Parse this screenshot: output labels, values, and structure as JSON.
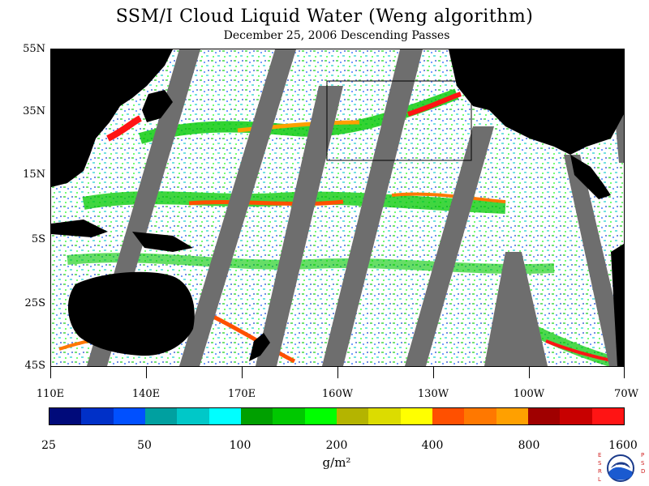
{
  "title": "SSM/I Cloud Liquid Water (Weng algorithm)",
  "subtitle": "December 25, 2006  Descending Passes",
  "lat_labels": [
    "55N",
    "35N",
    "15N",
    "5S",
    "25S",
    "45S"
  ],
  "lon_labels": [
    "110E",
    "140E",
    "170E",
    "160W",
    "130W",
    "100W",
    "70W"
  ],
  "colorbar": {
    "labels": [
      "25",
      "50",
      "100",
      "200",
      "400",
      "800",
      "1600"
    ],
    "unit": "g/m²",
    "colors": [
      "#000a7a",
      "#0030c8",
      "#0050ff",
      "#00a0a0",
      "#00c8c8",
      "#00ffff",
      "#00a000",
      "#00c800",
      "#00ff00",
      "#b4b400",
      "#dcdc00",
      "#ffff00",
      "#ff5000",
      "#ff7800",
      "#ffa000",
      "#a00000",
      "#c80000",
      "#ff1414"
    ]
  },
  "logo": {
    "left_text": "ESRL",
    "right_text": "PSD",
    "center_text": "NOAA"
  },
  "colors": {
    "land": "#000000",
    "swath_gap": "#6e6e6e",
    "ocean_no_cloud": "#ffffff",
    "frame": "#000000"
  }
}
